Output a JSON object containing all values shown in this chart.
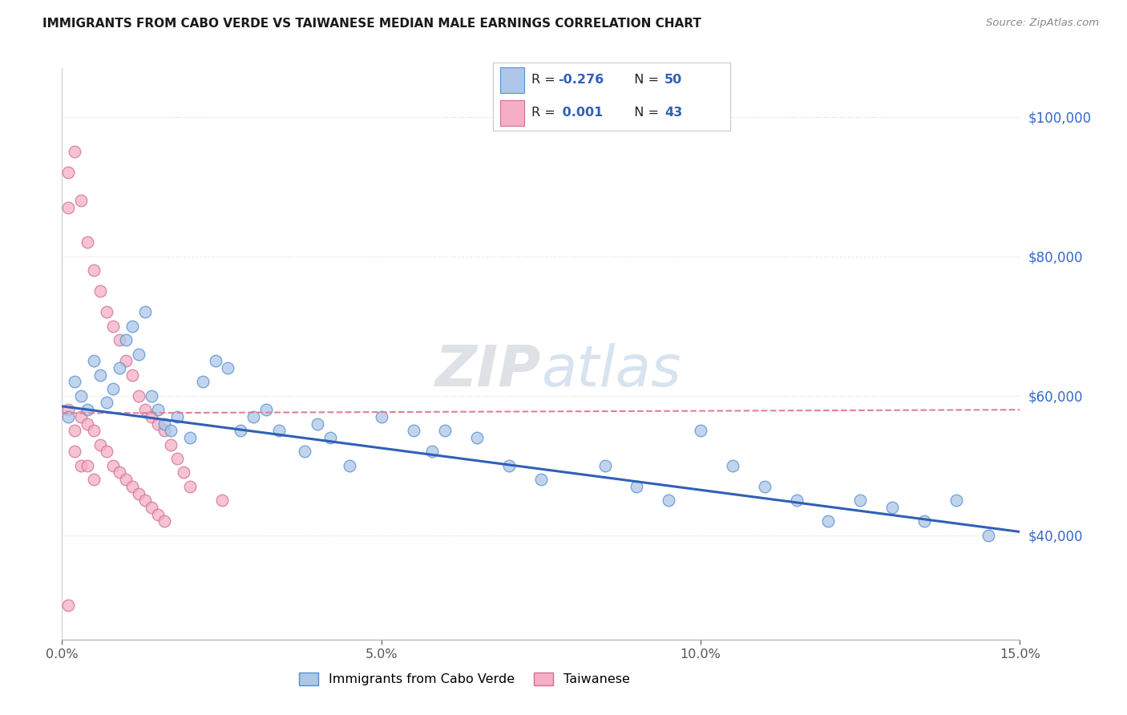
{
  "title": "IMMIGRANTS FROM CABO VERDE VS TAIWANESE MEDIAN MALE EARNINGS CORRELATION CHART",
  "source": "Source: ZipAtlas.com",
  "ylabel": "Median Male Earnings",
  "yticks": [
    40000,
    60000,
    80000,
    100000
  ],
  "ytick_labels": [
    "$40,000",
    "$60,000",
    "$80,000",
    "$100,000"
  ],
  "xmin": 0.0,
  "xmax": 0.15,
  "ymin": 25000,
  "ymax": 107000,
  "legend_label1": "Immigrants from Cabo Verde",
  "legend_label2": "Taiwanese",
  "r1": "-0.276",
  "n1": "50",
  "r2": "0.001",
  "n2": "43",
  "cabo_verde_fill": "#aec6e8",
  "cabo_verde_edge": "#5590d0",
  "taiwanese_fill": "#f5afc4",
  "taiwanese_edge": "#d07095",
  "cabo_verde_line_color": "#3060b8",
  "taiwanese_line_color": "#e08098",
  "right_axis_color": "#3568c8",
  "grid_color": "#dddddd",
  "cv_line_y0": 58500,
  "cv_line_y1": 40500,
  "tw_line_y0": 57500,
  "tw_line_y1": 58000
}
